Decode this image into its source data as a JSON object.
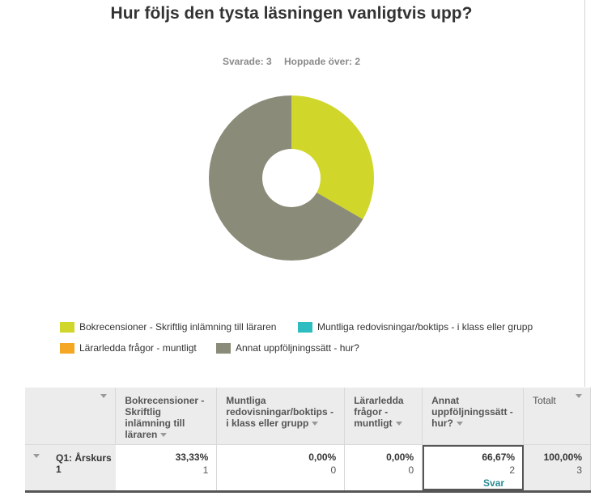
{
  "question": {
    "title": "Hur följs den tysta läsningen vanligtvis upp?",
    "answered": "Svarade: 3",
    "skipped": "Hoppade över: 2"
  },
  "chart_data": {
    "type": "pie",
    "categories": [
      "Bokrecensioner - Skriftlig inlämning till läraren",
      "Muntliga redovisningar/boktips - i klass eller grupp",
      "Lärarledda frågor - muntligt",
      "Annat uppföljningssätt - hur?"
    ],
    "values": [
      33.33,
      0.0,
      0.0,
      66.67
    ],
    "colors": [
      "#d0d62a",
      "#2dbcbf",
      "#f5a623",
      "#8b8b79"
    ],
    "legend_position": "bottom"
  },
  "legend": [
    {
      "label": "Bokrecensioner - Skriftlig inlämning till läraren",
      "color": "#d0d62a"
    },
    {
      "label": "Muntliga redovisningar/boktips - i klass eller grupp",
      "color": "#2dbcbf"
    },
    {
      "label": "Lärarledda frågor - muntligt",
      "color": "#f5a623"
    },
    {
      "label": "Annat uppföljningssätt - hur?",
      "color": "#8b8b79"
    }
  ],
  "table": {
    "headers": [
      "Bokrecensioner - Skriftlig inlämning till läraren",
      "Muntliga redovisningar/boktips - i klass eller grupp",
      "Lärarledda frågor - muntligt",
      "Annat uppföljningssätt - hur?",
      "Totalt"
    ],
    "row": {
      "label": "Q1: Årskurs 1",
      "cells": [
        {
          "pct": "33,33%",
          "count": "1"
        },
        {
          "pct": "0,00%",
          "count": "0"
        },
        {
          "pct": "0,00%",
          "count": "0"
        },
        {
          "pct": "66,67%",
          "count": "2",
          "link": "Svar"
        },
        {
          "pct": "100,00%",
          "count": "3"
        }
      ]
    }
  }
}
